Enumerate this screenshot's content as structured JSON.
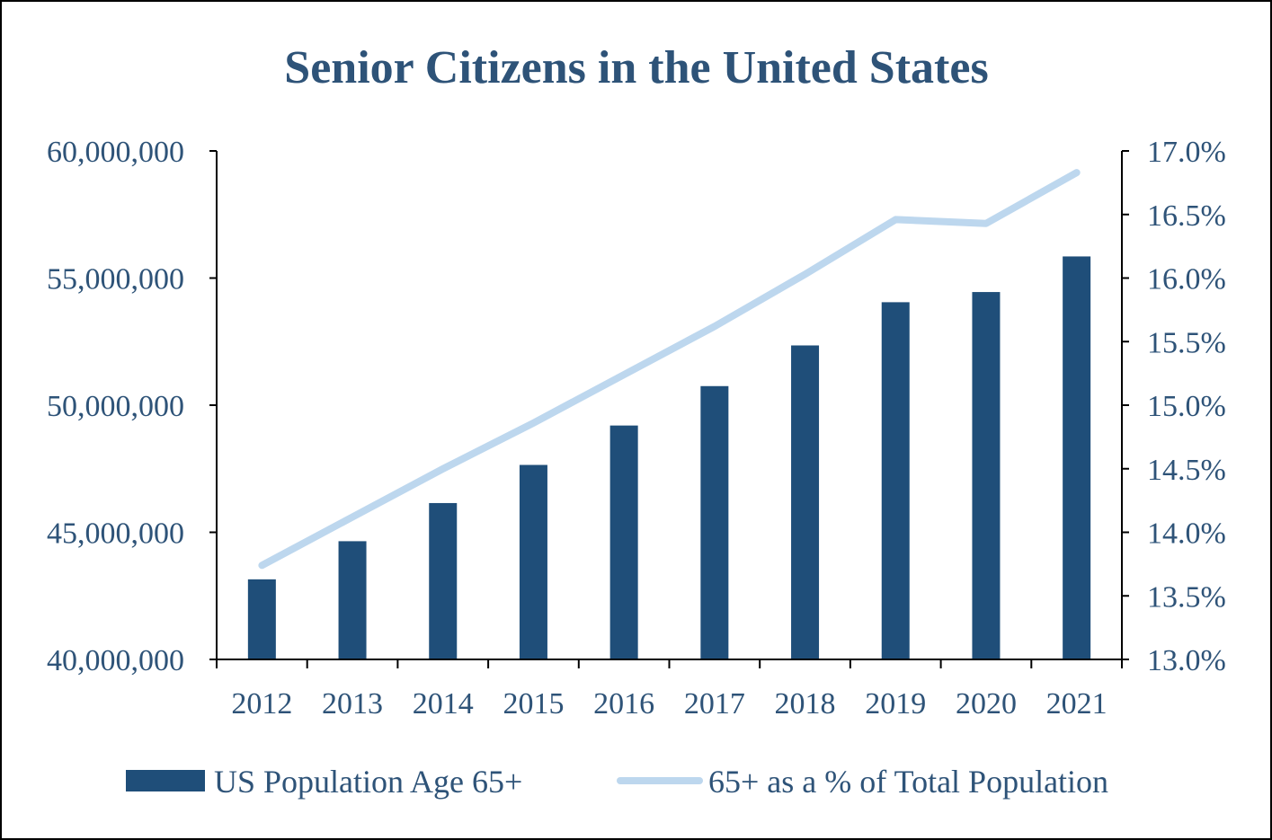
{
  "colors": {
    "bar": "#1f4e79",
    "line": "#bdd7ee",
    "text": "#2e5378",
    "axis": "#000000"
  },
  "chart_data": {
    "type": "bar+line",
    "title": "Senior Citizens in the United States",
    "categories": [
      "2012",
      "2013",
      "2014",
      "2015",
      "2016",
      "2017",
      "2018",
      "2019",
      "2020",
      "2021"
    ],
    "series": [
      {
        "name": "US Population Age 65+",
        "type": "bar",
        "axis": "left",
        "values": [
          43150000,
          44650000,
          46150000,
          47650000,
          49200000,
          50750000,
          52350000,
          54050000,
          54450000,
          55850000
        ]
      },
      {
        "name": "65+ as a % of Total Population",
        "type": "line",
        "axis": "right",
        "values": [
          13.74,
          14.12,
          14.5,
          14.86,
          15.24,
          15.62,
          16.03,
          16.46,
          16.43,
          16.83
        ]
      }
    ],
    "y_left": {
      "min": 40000000,
      "max": 60000000,
      "step": 5000000,
      "tick_labels": [
        "40,000,000",
        "45,000,000",
        "50,000,000",
        "55,000,000",
        "60,000,000"
      ]
    },
    "y_right": {
      "min": 13.0,
      "max": 17.0,
      "step": 0.5,
      "tick_labels": [
        "13.0%",
        "13.5%",
        "14.0%",
        "14.5%",
        "15.0%",
        "15.5%",
        "16.0%",
        "16.5%",
        "17.0%"
      ]
    },
    "legend": {
      "position": "bottom",
      "items": [
        {
          "label": "US Population Age 65+",
          "marker": "bar"
        },
        {
          "label": "65+ as a % of Total Population",
          "marker": "line"
        }
      ]
    },
    "grid": false
  }
}
